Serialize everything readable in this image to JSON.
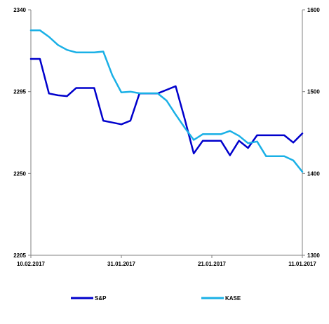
{
  "chart_data": {
    "type": "line",
    "x_tick_labels": [
      "10.02.2017",
      "31.01.2017",
      "21.01.2017",
      "11.01.2017"
    ],
    "y_left": {
      "min": 2205,
      "max": 2340,
      "ticks": [
        2205,
        2250,
        2295,
        2340
      ]
    },
    "y_right": {
      "min": 1300,
      "max": 1600,
      "ticks": [
        1300,
        1400,
        1500,
        1600
      ]
    },
    "grid": false,
    "legend_position": "bottom",
    "series": [
      {
        "name": "S&P",
        "axis": "left",
        "color": "#0000CC",
        "values": [
          2313,
          2313,
          2294,
          2293,
          2292.5,
          2297,
          2297,
          2297,
          2279,
          2278,
          2277,
          2279,
          2294,
          2294,
          2294,
          2296,
          2298,
          2280,
          2261,
          2268,
          2268,
          2268,
          2260,
          2268,
          2264,
          2271,
          2271,
          2271,
          2271,
          2267,
          2272
        ]
      },
      {
        "name": "KASE",
        "axis": "right",
        "color": "#1AB0E6",
        "values": [
          1575,
          1575,
          1567,
          1557,
          1551,
          1548,
          1548,
          1548,
          1549,
          1520,
          1499,
          1500,
          1498,
          1498,
          1498,
          1489,
          1472,
          1456,
          1441,
          1448,
          1448,
          1448,
          1452,
          1446,
          1437,
          1439,
          1421,
          1421,
          1421,
          1416,
          1402
        ]
      }
    ]
  }
}
